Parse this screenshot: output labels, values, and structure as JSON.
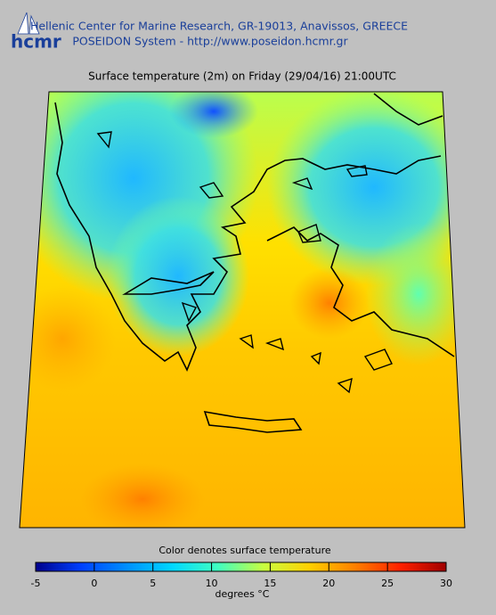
{
  "header": {
    "logo": "hcmr",
    "line1": "Hellenic Center for Marine Research, GR-19013, Anavissos, GREECE",
    "line2": "POSEIDON System - http://www.poseidon.hcmr.gr"
  },
  "map": {
    "title": "Surface temperature (2m) on Friday (29/04/16) 21:00UTC"
  },
  "colorbar": {
    "label": "Color denotes surface temperature",
    "units": "degrees °C",
    "range": [
      -5,
      30
    ],
    "ticks": [
      -5,
      0,
      5,
      10,
      15,
      20,
      25,
      30
    ],
    "colormap": [
      "#00008c",
      "#0040ff",
      "#0090ff",
      "#00d8ff",
      "#40ffc0",
      "#c8ff40",
      "#ffd000",
      "#ff8000",
      "#ff2000",
      "#a00000"
    ]
  }
}
